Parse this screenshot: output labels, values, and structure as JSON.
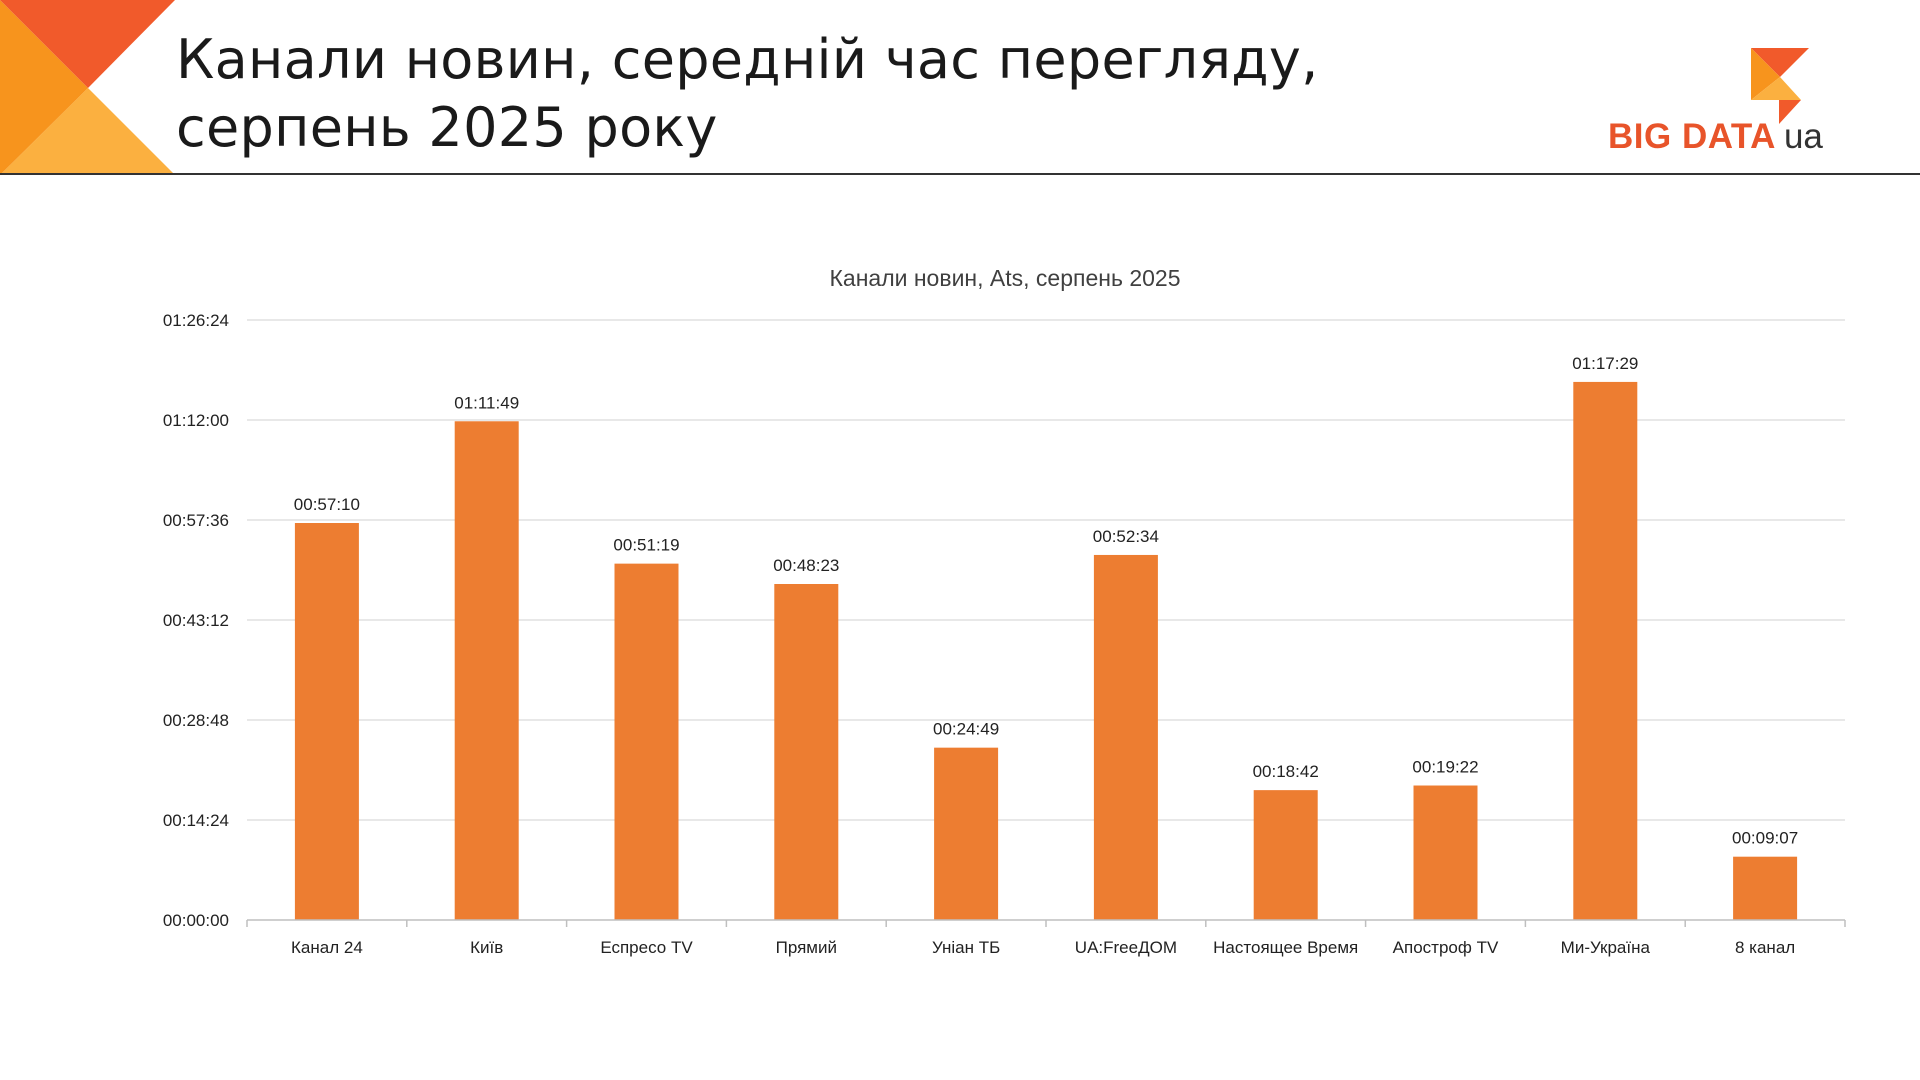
{
  "slide": {
    "title_line1": "Канали новин, середній час перегляду,",
    "title_line2": "серпень 2025 року"
  },
  "logo": {
    "text_main": "BIG DATA",
    "text_suffix": "ua"
  },
  "colors": {
    "bar": "#ED7D31",
    "corner_dark": "#F15A2B",
    "corner_mid": "#F7941D",
    "corner_light": "#FBB040",
    "grid": "#D9D9D9",
    "axis": "#BFBFBF"
  },
  "chart_data": {
    "type": "bar",
    "title": "Канали новин, Ats, серпень 2025",
    "categories": [
      "Канал 24",
      "Київ",
      "Еспресо TV",
      "Прямий",
      "Уніан ТБ",
      "UA:FreeДОМ",
      "Настоящее Время",
      "Апостроф TV",
      "Ми-Україна",
      "8 канал"
    ],
    "values": [
      "00:57:10",
      "01:11:49",
      "00:51:19",
      "00:48:23",
      "00:24:49",
      "00:52:34",
      "00:18:42",
      "00:19:22",
      "01:17:29",
      "00:09:07"
    ],
    "y_ticks": [
      "00:00:00",
      "00:14:24",
      "00:28:48",
      "00:43:12",
      "00:57:36",
      "01:12:00",
      "01:26:24"
    ],
    "ylim": [
      "00:00:00",
      "01:26:24"
    ],
    "grid": true,
    "legend": "none",
    "data_labels": true
  }
}
